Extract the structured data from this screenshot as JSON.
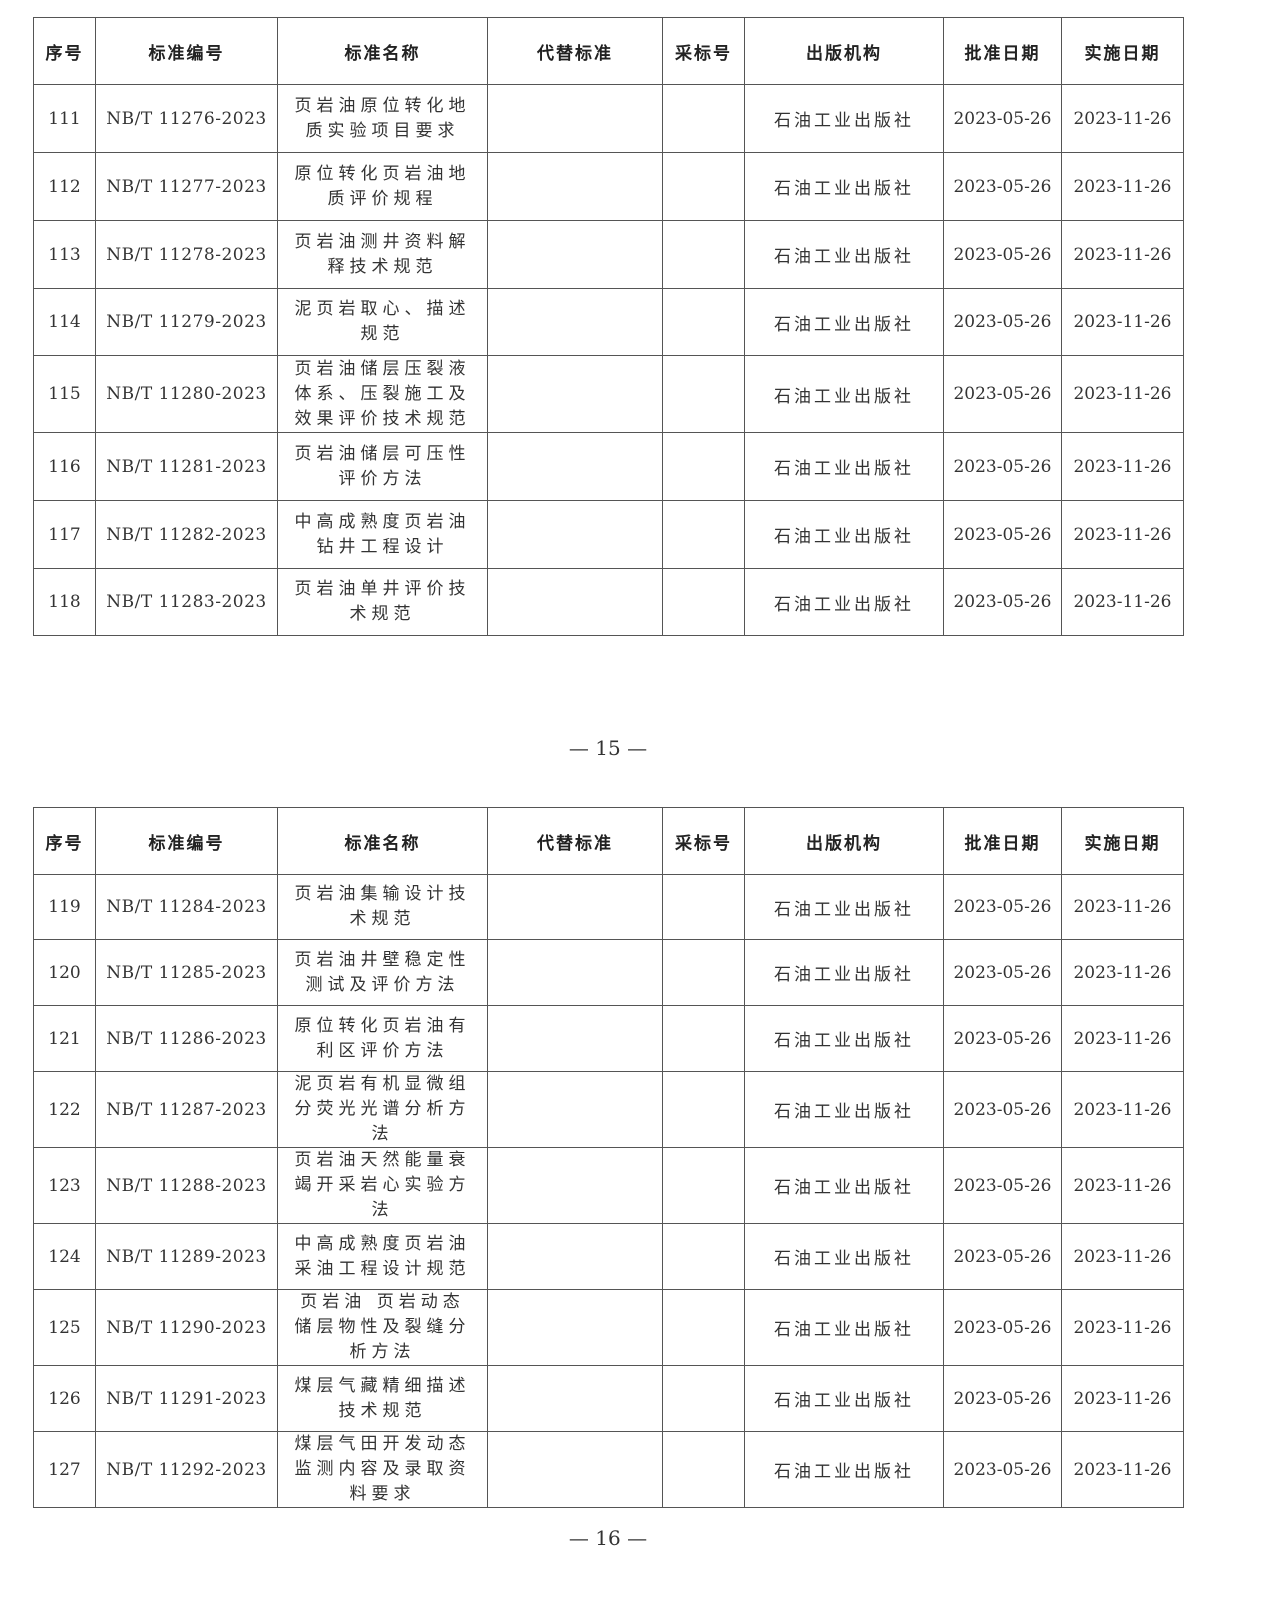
{
  "headers": [
    "序号",
    "标准编号",
    "标准名称",
    "代替标准",
    "采标号",
    "出版机构",
    "批准日期",
    "实施日期"
  ],
  "pages": [
    {
      "page_number": "— 15 —",
      "rows": [
        {
          "no": "111",
          "code": "NB/T 11276-2023",
          "name": "页岩油原位转化地质实验项目要求",
          "replace": "",
          "adopt": "",
          "publisher": "石油工业出版社",
          "approve": "2023-05-26",
          "implement": "2023-11-26"
        },
        {
          "no": "112",
          "code": "NB/T 11277-2023",
          "name": "原位转化页岩油地质评价规程",
          "replace": "",
          "adopt": "",
          "publisher": "石油工业出版社",
          "approve": "2023-05-26",
          "implement": "2023-11-26"
        },
        {
          "no": "113",
          "code": "NB/T 11278-2023",
          "name": "页岩油测井资料解释技术规范",
          "replace": "",
          "adopt": "",
          "publisher": "石油工业出版社",
          "approve": "2023-05-26",
          "implement": "2023-11-26"
        },
        {
          "no": "114",
          "code": "NB/T 11279-2023",
          "name": "泥页岩取心、描述规范",
          "replace": "",
          "adopt": "",
          "publisher": "石油工业出版社",
          "approve": "2023-05-26",
          "implement": "2023-11-26"
        },
        {
          "no": "115",
          "code": "NB/T 11280-2023",
          "name": "页岩油储层压裂液体系、压裂施工及效果评价技术规范",
          "replace": "",
          "adopt": "",
          "publisher": "石油工业出版社",
          "approve": "2023-05-26",
          "implement": "2023-11-26"
        },
        {
          "no": "116",
          "code": "NB/T 11281-2023",
          "name": "页岩油储层可压性评价方法",
          "replace": "",
          "adopt": "",
          "publisher": "石油工业出版社",
          "approve": "2023-05-26",
          "implement": "2023-11-26"
        },
        {
          "no": "117",
          "code": "NB/T 11282-2023",
          "name": "中高成熟度页岩油钻井工程设计",
          "replace": "",
          "adopt": "",
          "publisher": "石油工业出版社",
          "approve": "2023-05-26",
          "implement": "2023-11-26"
        },
        {
          "no": "118",
          "code": "NB/T 11283-2023",
          "name": "页岩油单井评价技术规范",
          "replace": "",
          "adopt": "",
          "publisher": "石油工业出版社",
          "approve": "2023-05-26",
          "implement": "2023-11-26"
        }
      ]
    },
    {
      "page_number": "— 16 —",
      "rows": [
        {
          "no": "119",
          "code": "NB/T 11284-2023",
          "name": "页岩油集输设计技术规范",
          "replace": "",
          "adopt": "",
          "publisher": "石油工业出版社",
          "approve": "2023-05-26",
          "implement": "2023-11-26"
        },
        {
          "no": "120",
          "code": "NB/T 11285-2023",
          "name": "页岩油井壁稳定性测试及评价方法",
          "replace": "",
          "adopt": "",
          "publisher": "石油工业出版社",
          "approve": "2023-05-26",
          "implement": "2023-11-26"
        },
        {
          "no": "121",
          "code": "NB/T 11286-2023",
          "name": "原位转化页岩油有利区评价方法",
          "replace": "",
          "adopt": "",
          "publisher": "石油工业出版社",
          "approve": "2023-05-26",
          "implement": "2023-11-26"
        },
        {
          "no": "122",
          "code": "NB/T 11287-2023",
          "name": "泥页岩有机显微组分荧光光谱分析方法",
          "replace": "",
          "adopt": "",
          "publisher": "石油工业出版社",
          "approve": "2023-05-26",
          "implement": "2023-11-26"
        },
        {
          "no": "123",
          "code": "NB/T 11288-2023",
          "name": "页岩油天然能量衰竭开采岩心实验方法",
          "replace": "",
          "adopt": "",
          "publisher": "石油工业出版社",
          "approve": "2023-05-26",
          "implement": "2023-11-26"
        },
        {
          "no": "124",
          "code": "NB/T 11289-2023",
          "name": "中高成熟度页岩油采油工程设计规范",
          "replace": "",
          "adopt": "",
          "publisher": "石油工业出版社",
          "approve": "2023-05-26",
          "implement": "2023-11-26"
        },
        {
          "no": "125",
          "code": "NB/T 11290-2023",
          "name": "页岩油 页岩动态储层物性及裂缝分析方法",
          "replace": "",
          "adopt": "",
          "publisher": "石油工业出版社",
          "approve": "2023-05-26",
          "implement": "2023-11-26"
        },
        {
          "no": "126",
          "code": "NB/T 11291-2023",
          "name": "煤层气藏精细描述技术规范",
          "replace": "",
          "adopt": "",
          "publisher": "石油工业出版社",
          "approve": "2023-05-26",
          "implement": "2023-11-26"
        },
        {
          "no": "127",
          "code": "NB/T 11292-2023",
          "name": "煤层气田开发动态监测内容及录取资料要求",
          "replace": "",
          "adopt": "",
          "publisher": "石油工业出版社",
          "approve": "2023-05-26",
          "implement": "2023-11-26"
        }
      ]
    }
  ]
}
